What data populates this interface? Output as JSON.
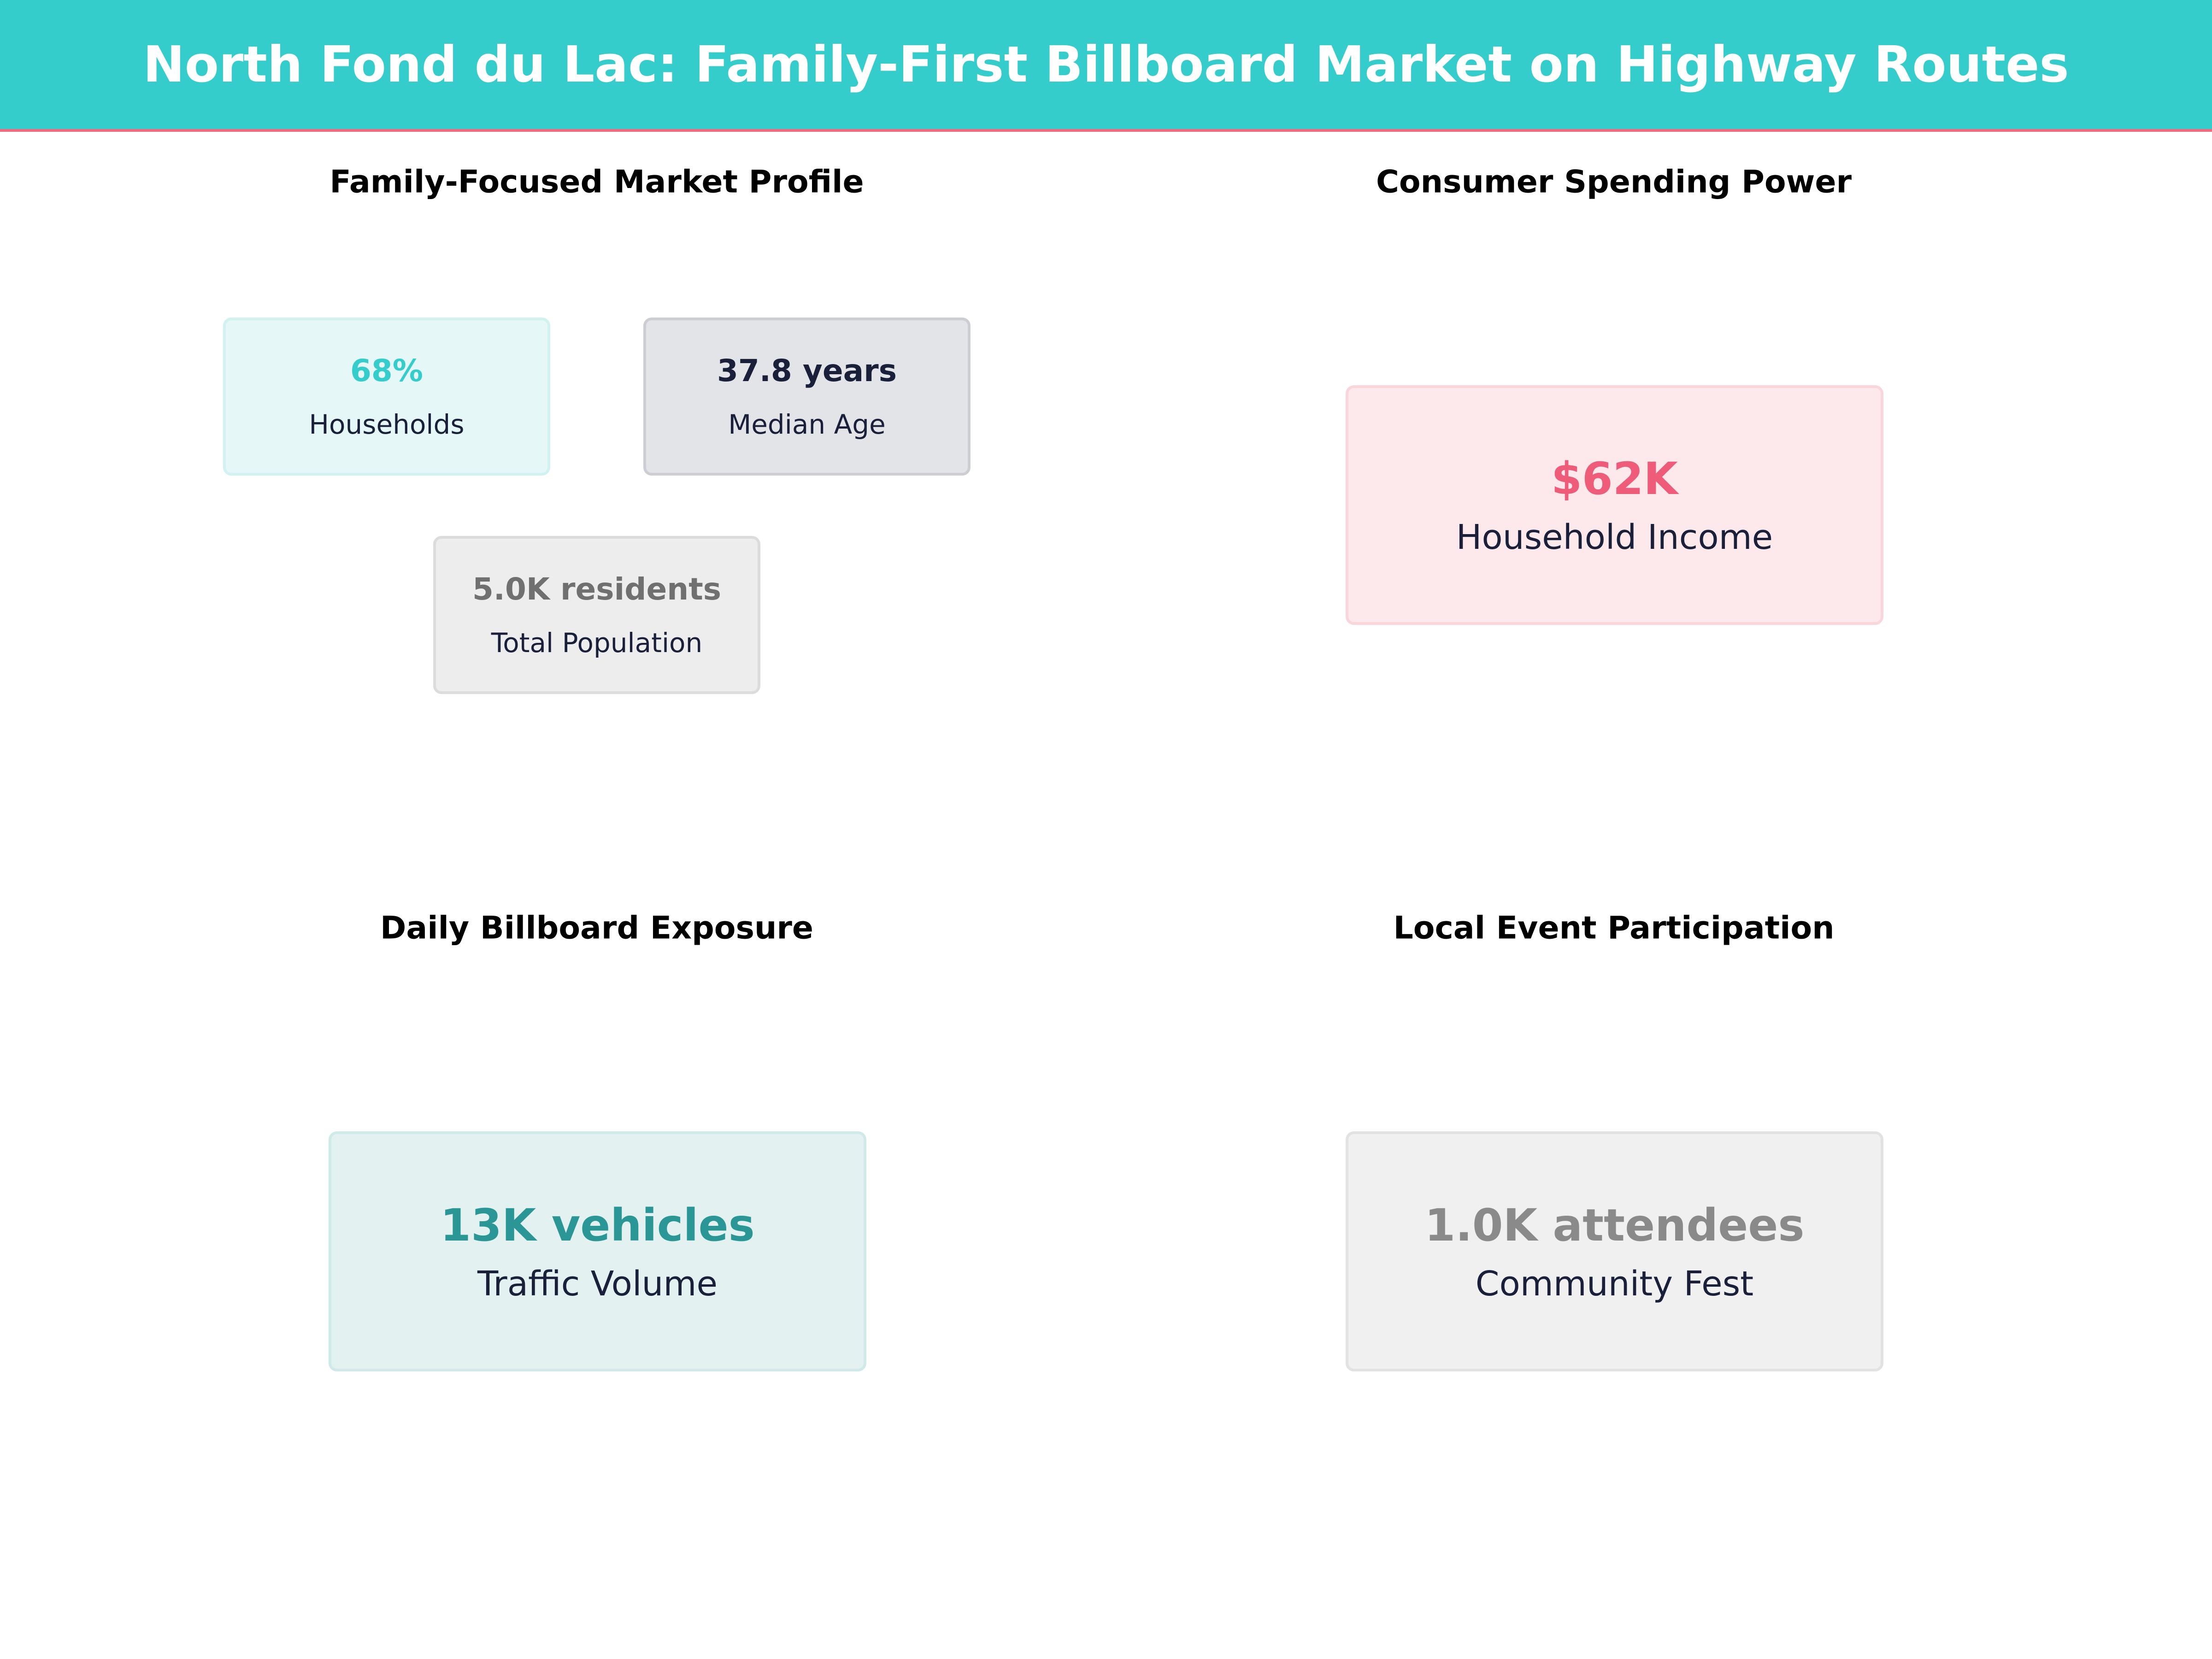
{
  "title": "North Fond du Lac: Family-First Billboard Market on Highway Routes",
  "colors": {
    "header": "#35CCCC",
    "accent_line": "#EE6A7E"
  },
  "sections": [
    {
      "title": "Family-Focused Market Profile",
      "cards": [
        {
          "value": "68%",
          "label": "Households",
          "color": "#35CCCC"
        },
        {
          "value": "37.8 years",
          "label": "Median Age",
          "color": "#1A1F3A"
        },
        {
          "value": "5.0K residents",
          "label": "Total Population",
          "color": "#707070"
        }
      ]
    },
    {
      "title": "Consumer Spending Power",
      "cards": [
        {
          "value": "$62K",
          "label": "Household Income",
          "color": "#EE5C7A"
        }
      ]
    },
    {
      "title": "Daily Billboard Exposure",
      "cards": [
        {
          "value": "13K vehicles",
          "label": "Traffic Volume",
          "color": "#2A9696"
        }
      ]
    },
    {
      "title": "Local Event Participation",
      "cards": [
        {
          "value": "1.0K attendees",
          "label": "Community Fest",
          "color": "#8A8A8A"
        }
      ]
    }
  ]
}
